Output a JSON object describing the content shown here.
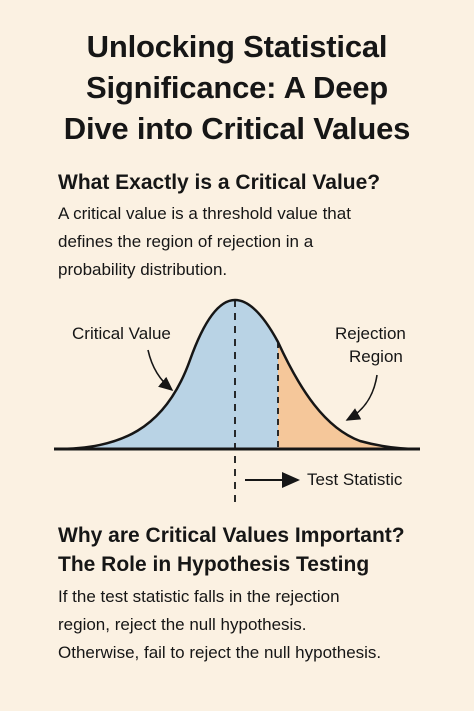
{
  "title": {
    "line1": "Unlocking Statistical",
    "line2": "Significance: A Deep",
    "line3": "Dive into Critical Values"
  },
  "section1": {
    "heading": "What Exactly is a Critical Value?",
    "body": [
      "A critical value is a threshold value that",
      "defines the region of rejection in a",
      "probability distribution."
    ]
  },
  "diagram": {
    "critical_value_label": "Critical Value",
    "rejection_region_label_line1": "Rejection",
    "rejection_region_label_line2": "Region",
    "test_statistic_label": "Test Statistic",
    "colors": {
      "curve_fill": "#b9d3e5",
      "rejection_fill": "#f5c79a",
      "line": "#161616"
    }
  },
  "section2": {
    "heading_line1": "Why are Critical Values Important?",
    "heading_line2": "The Role in Hypothesis Testing",
    "body": [
      "If the test statistic falls in the rejection",
      "region, reject the null hypothesis.",
      "Otherwise, fail to reject the null hypothesis."
    ]
  }
}
